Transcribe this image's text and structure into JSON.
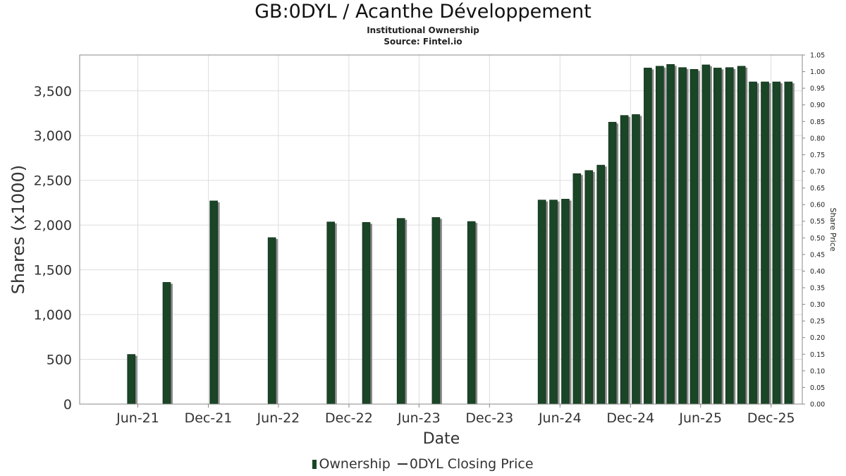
{
  "title": "GB:0DYL / Acanthe Développement",
  "subtitle": "Institutional Ownership",
  "source": "Source: Fintel.io",
  "legend": {
    "ownership": "Ownership",
    "price": "0DYL Closing Price"
  },
  "colors": {
    "bar": "#1a4526",
    "bar_shadow": "#8a8a8a",
    "grid": "#dddddd",
    "frame": "#888888"
  },
  "chart_data": {
    "type": "bar",
    "title": "GB:0DYL / Acanthe Développement",
    "xlabel": "Date",
    "ylabel": "Shares (x1000)",
    "y2label": "Share Price",
    "ylim": [
      0,
      3900
    ],
    "y2lim": [
      0,
      1.05
    ],
    "yticks": [
      0,
      500,
      1000,
      1500,
      2000,
      2500,
      3000,
      3500
    ],
    "ytick_labels": [
      "0",
      "500",
      "1,000",
      "1,500",
      "2,000",
      "2,500",
      "3,000",
      "3,500"
    ],
    "y2ticks": [
      0.0,
      0.05,
      0.1,
      0.15,
      0.2,
      0.25,
      0.3,
      0.35,
      0.4,
      0.45,
      0.5,
      0.55,
      0.6,
      0.65,
      0.7,
      0.75,
      0.8,
      0.85,
      0.9,
      0.95,
      1.0,
      1.05
    ],
    "y2tick_labels": [
      "0.00",
      "0.05",
      "0.10",
      "0.15",
      "0.20",
      "0.25",
      "0.30",
      "0.35",
      "0.40",
      "0.45",
      "0.50",
      "0.55",
      "0.60",
      "0.65",
      "0.70",
      "0.75",
      "0.80",
      "0.85",
      "0.90",
      "0.95",
      "1.00",
      "1.05"
    ],
    "xlim": [
      "2021-01-01",
      "2026-02-20"
    ],
    "xticks": [
      "2021-06-01",
      "2021-12-01",
      "2022-06-01",
      "2022-12-01",
      "2023-06-01",
      "2023-12-01",
      "2024-06-01",
      "2024-12-01",
      "2025-06-01",
      "2025-12-01"
    ],
    "xtick_labels": [
      "Jun-21",
      "Dec-21",
      "Jun-22",
      "Dec-22",
      "Jun-23",
      "Dec-23",
      "Jun-24",
      "Dec-24",
      "Jun-25",
      "Dec-25"
    ],
    "grid": true,
    "legend_position": "bottom",
    "series": [
      {
        "name": "Ownership",
        "x": [
          "2021-05-15",
          "2021-08-15",
          "2021-12-15",
          "2022-05-15",
          "2022-10-15",
          "2023-01-15",
          "2023-04-15",
          "2023-07-15",
          "2023-10-15",
          "2024-04-15",
          "2024-05-15",
          "2024-06-15",
          "2024-07-15",
          "2024-08-15",
          "2024-09-15",
          "2024-10-15",
          "2024-11-15",
          "2024-12-15",
          "2025-01-15",
          "2025-02-15",
          "2025-03-15",
          "2025-04-15",
          "2025-05-15",
          "2025-06-15",
          "2025-07-15",
          "2025-08-15",
          "2025-09-15",
          "2025-10-15",
          "2025-11-15",
          "2025-12-15",
          "2026-01-15"
        ],
        "values": [
          555,
          1360,
          2270,
          1860,
          2035,
          2030,
          2075,
          2085,
          2040,
          2280,
          2280,
          2290,
          2575,
          2610,
          2670,
          3150,
          3225,
          3235,
          3755,
          3775,
          3795,
          3760,
          3740,
          3790,
          3755,
          3760,
          3775,
          3600,
          3600,
          3600,
          3600
        ]
      }
    ]
  }
}
